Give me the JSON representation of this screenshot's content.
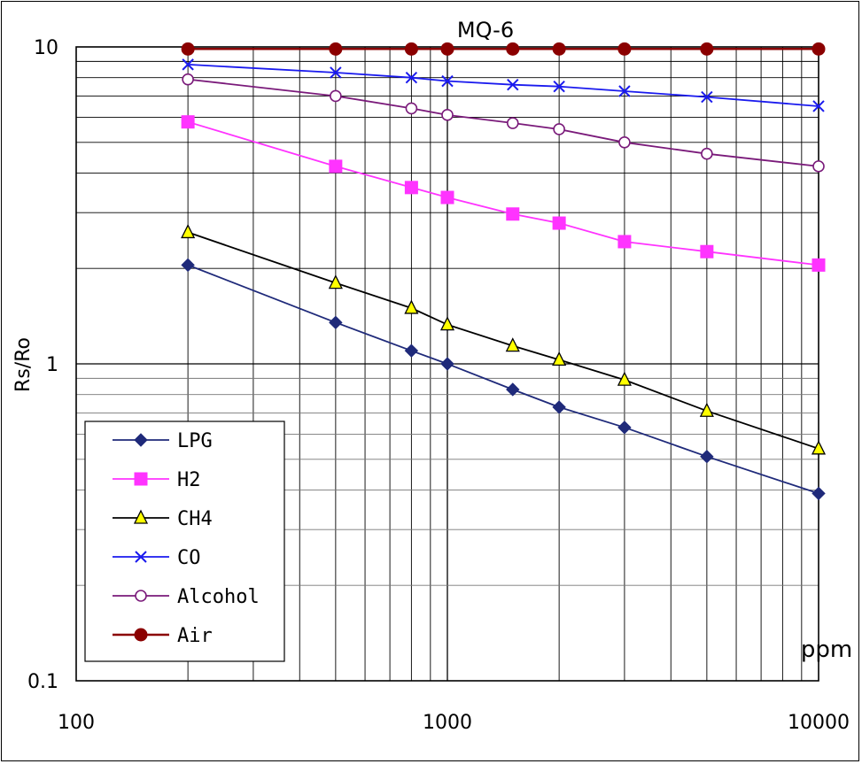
{
  "chart_data": {
    "type": "line",
    "title": "MQ-6",
    "xlabel": "ppm",
    "ylabel": "Rs/Ro",
    "xscale": "log",
    "yscale": "log",
    "xlim": [
      100,
      10000
    ],
    "ylim": [
      0.1,
      10
    ],
    "x_tick_labels": [
      "100",
      "1000",
      "10000"
    ],
    "y_tick_labels": [
      "0.1",
      "1",
      "10"
    ],
    "grid": true,
    "legend_position": "bottom-left",
    "series": [
      {
        "name": "LPG",
        "color": "#1f2a7a",
        "marker": "diamond",
        "points": [
          [
            200,
            2.05
          ],
          [
            500,
            1.35
          ],
          [
            800,
            1.1
          ],
          [
            1000,
            1.0
          ],
          [
            1500,
            0.83
          ],
          [
            2000,
            0.73
          ],
          [
            3000,
            0.63
          ],
          [
            5000,
            0.51
          ],
          [
            10000,
            0.39
          ]
        ]
      },
      {
        "name": "H2",
        "color": "#ff33ff",
        "marker": "square",
        "points": [
          [
            200,
            5.8
          ],
          [
            500,
            4.2
          ],
          [
            800,
            3.6
          ],
          [
            1000,
            3.35
          ],
          [
            1500,
            2.97
          ],
          [
            2000,
            2.78
          ],
          [
            3000,
            2.43
          ],
          [
            5000,
            2.26
          ],
          [
            10000,
            2.05
          ]
        ]
      },
      {
        "name": "CH4",
        "color": "#000000",
        "marker": "triangle",
        "points": [
          [
            200,
            2.6
          ],
          [
            500,
            1.8
          ],
          [
            800,
            1.5
          ],
          [
            1000,
            1.33
          ],
          [
            1500,
            1.14
          ],
          [
            2000,
            1.03
          ],
          [
            3000,
            0.89
          ],
          [
            5000,
            0.71
          ],
          [
            10000,
            0.54
          ]
        ]
      },
      {
        "name": "CO",
        "color": "#1a1aee",
        "marker": "x",
        "points": [
          [
            200,
            8.8
          ],
          [
            500,
            8.3
          ],
          [
            800,
            8.0
          ],
          [
            1000,
            7.8
          ],
          [
            1500,
            7.6
          ],
          [
            2000,
            7.5
          ],
          [
            3000,
            7.25
          ],
          [
            5000,
            6.95
          ],
          [
            10000,
            6.5
          ]
        ]
      },
      {
        "name": "Alcohol",
        "color": "#7a1a7a",
        "marker": "circle-open",
        "points": [
          [
            200,
            7.9
          ],
          [
            500,
            7.0
          ],
          [
            800,
            6.4
          ],
          [
            1000,
            6.1
          ],
          [
            1500,
            5.75
          ],
          [
            2000,
            5.5
          ],
          [
            3000,
            5.0
          ],
          [
            5000,
            4.6
          ],
          [
            10000,
            4.2
          ]
        ]
      },
      {
        "name": "Air",
        "color": "#8b0000",
        "marker": "circle-filled",
        "points": [
          [
            200,
            9.85
          ],
          [
            500,
            9.85
          ],
          [
            800,
            9.85
          ],
          [
            1000,
            9.85
          ],
          [
            1500,
            9.85
          ],
          [
            2000,
            9.85
          ],
          [
            3000,
            9.85
          ],
          [
            5000,
            9.85
          ],
          [
            10000,
            9.85
          ]
        ]
      }
    ]
  }
}
